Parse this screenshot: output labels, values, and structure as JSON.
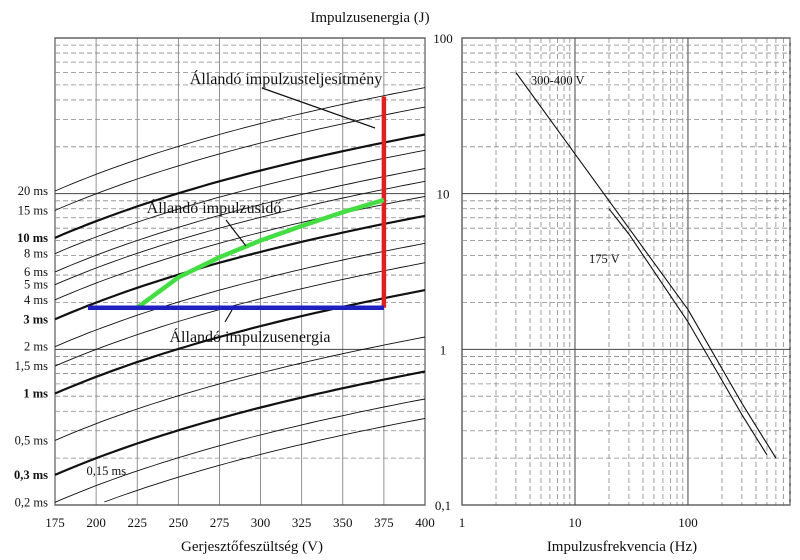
{
  "chart_data": [
    {
      "type": "line",
      "title": "",
      "top_label": "Impulzusenergia (J)",
      "xlabel": "Gerjesztőfeszültség (V)",
      "x_ticks": [
        175,
        200,
        225,
        250,
        275,
        300,
        325,
        350,
        375,
        400
      ],
      "xlim": [
        175,
        400
      ],
      "y_scale": "log",
      "ylim": [
        0.1,
        100
      ],
      "y_ticks": [
        "0,1",
        "1",
        "10",
        "100"
      ],
      "grid": true,
      "series_labels": [
        {
          "label": "20 ms",
          "bold": false,
          "energy_at_400V": 48
        },
        {
          "label": "15 ms",
          "bold": false,
          "energy_at_400V": 36
        },
        {
          "label": "10 ms",
          "bold": true,
          "energy_at_400V": 24
        },
        {
          "label": "8 ms",
          "bold": false,
          "energy_at_400V": 19
        },
        {
          "label": "6 ms",
          "bold": false,
          "energy_at_400V": 14.5
        },
        {
          "label": "5 ms",
          "bold": false,
          "energy_at_400V": 12
        },
        {
          "label": "4 ms",
          "bold": false,
          "energy_at_400V": 9.6
        },
        {
          "label": "3 ms",
          "bold": true,
          "energy_at_400V": 7.2
        },
        {
          "label": "2 ms",
          "bold": false,
          "energy_at_400V": 4.8
        },
        {
          "label": "1,5 ms",
          "bold": false,
          "energy_at_400V": 3.6
        },
        {
          "label": "1 ms",
          "bold": true,
          "energy_at_400V": 2.4
        },
        {
          "label": "0,5 ms",
          "bold": false,
          "energy_at_400V": 1.2
        },
        {
          "label": "0,3 ms",
          "bold": true,
          "energy_at_400V": 0.72
        },
        {
          "label": "0,2 ms",
          "bold": false,
          "energy_at_400V": 0.48
        },
        {
          "label": "0,15 ms",
          "bold": false,
          "energy_at_400V": 0.36
        }
      ],
      "energy_exponent": 1.85,
      "highlights": [
        {
          "name": "Állandó impulzusteljesítmény",
          "color": "#e02020",
          "x": [
            375,
            375
          ],
          "y": [
            1.85,
            42
          ]
        },
        {
          "name": "Állandó impulzusidő",
          "color": "#44dd44",
          "x": [
            225,
            250,
            275,
            300,
            325,
            350,
            375
          ],
          "y": [
            1.85,
            2.9,
            3.9,
            5.0,
            6.2,
            7.6,
            9.1
          ]
        },
        {
          "name": "Állandó impulzusenergia",
          "color": "#2020c0",
          "x": [
            195,
            375
          ],
          "y": [
            1.85,
            1.85
          ]
        }
      ]
    },
    {
      "type": "line",
      "title": "",
      "xlabel": "Impulzusfrekvencia (Hz)",
      "x_scale": "log",
      "xlim": [
        1,
        800
      ],
      "x_ticks": [
        "1",
        "10",
        "100"
      ],
      "y_scale": "log",
      "ylim": [
        0.1,
        100
      ],
      "grid": true,
      "series": [
        {
          "name": "300-400 V",
          "x": [
            3,
            10,
            30,
            100,
            300,
            600
          ],
          "y": [
            60,
            18,
            6,
            1.8,
            0.45,
            0.2
          ]
        },
        {
          "name": "175 V",
          "x": [
            20,
            30,
            100,
            300,
            500
          ],
          "y": [
            8,
            5.5,
            1.5,
            0.38,
            0.21
          ]
        }
      ]
    }
  ],
  "icons": {
    "chart_comma": "︐"
  }
}
